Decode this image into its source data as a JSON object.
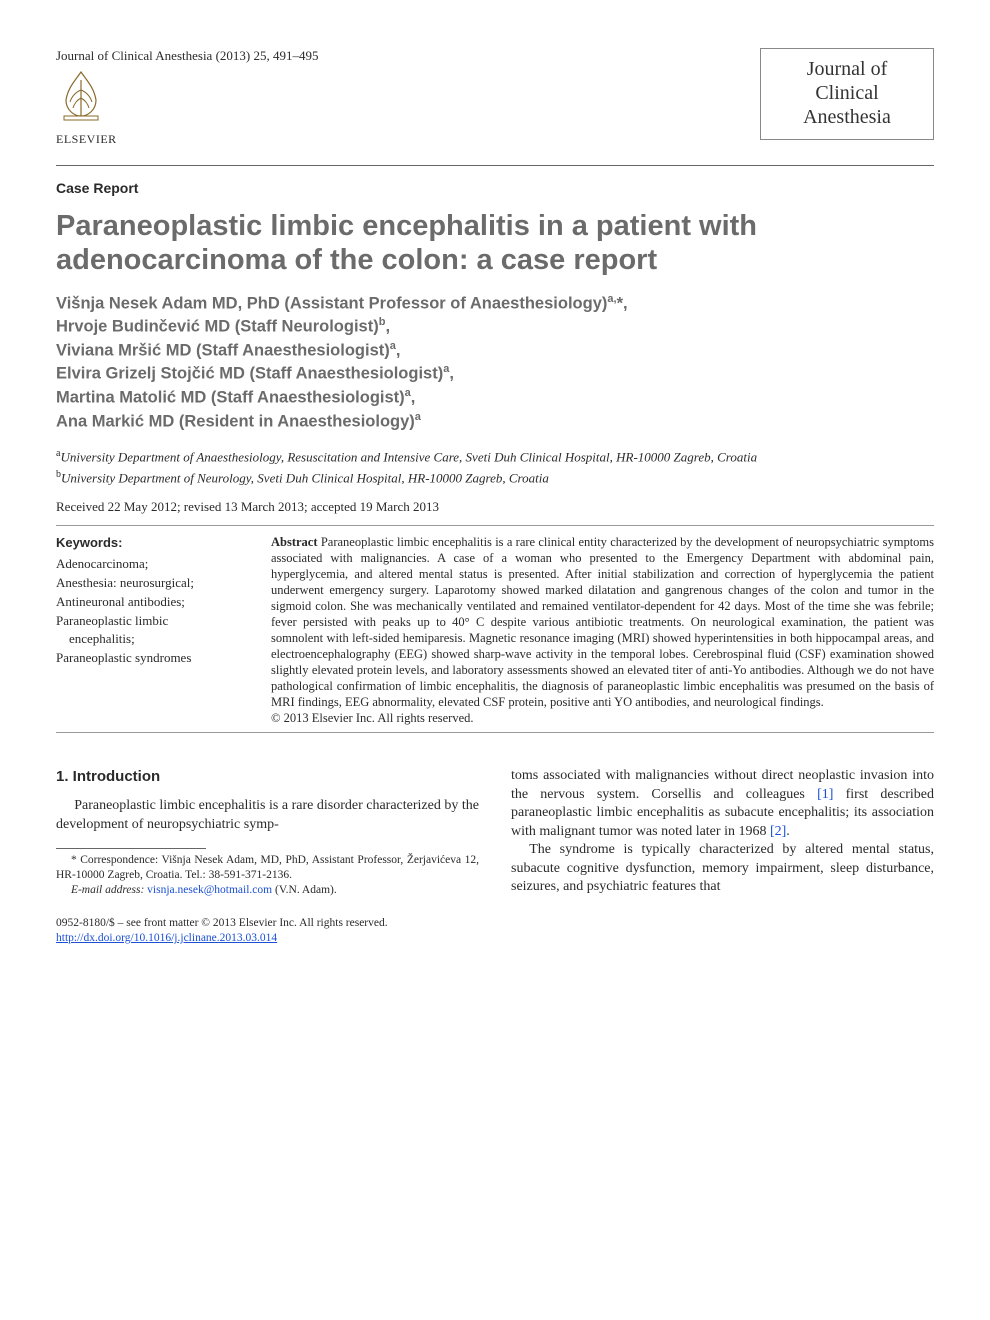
{
  "header": {
    "citation": "Journal of Clinical Anesthesia (2013) 25, 491–495",
    "publisher_name": "ELSEVIER",
    "journal_box_lines": [
      "Journal of",
      "Clinical",
      "Anesthesia"
    ]
  },
  "article": {
    "type_label": "Case Report",
    "title": "Paraneoplastic limbic encephalitis in a patient with adenocarcinoma of the colon: a case report",
    "authors_html_lines": [
      "Višnja Nesek Adam MD, PhD (Assistant Professor of Anaesthesiology)<sup>a,</sup>*,",
      "Hrvoje Budinčević MD (Staff Neurologist)<sup>b</sup>,",
      "Viviana Mršić MD (Staff Anaesthesiologist)<sup>a</sup>,",
      "Elvira Grizelj Stojčić MD (Staff Anaesthesiologist)<sup>a</sup>,",
      "Martina Matolić MD (Staff Anaesthesiologist)<sup>a</sup>,",
      "Ana Markić MD (Resident in Anaesthesiology)<sup>a</sup>"
    ],
    "affiliations": [
      "<sup>a</sup>University Department of Anaesthesiology, Resuscitation and Intensive Care, Sveti Duh Clinical Hospital, HR-10000 Zagreb, Croatia",
      "<sup>b</sup>University Department of Neurology, Sveti Duh Clinical Hospital, HR-10000 Zagreb, Croatia"
    ],
    "dates": "Received 22 May 2012; revised 13 March 2013; accepted 19 March 2013",
    "keywords_head": "Keywords:",
    "keywords": [
      "Adenocarcinoma;",
      "Anesthesia: neurosurgical;",
      "Antineuronal antibodies;",
      "Paraneoplastic limbic encephalitis;",
      "Paraneoplastic syndromes"
    ],
    "abstract_lead": "Abstract",
    "abstract_body": "Paraneoplastic limbic encephalitis is a rare clinical entity characterized by the development of neuropsychiatric symptoms associated with malignancies. A case of a woman who presented to the Emergency Department with abdominal pain, hyperglycemia, and altered mental status is presented. After initial stabilization and correction of hyperglycemia the patient underwent emergency surgery. Laparotomy showed marked dilatation and gangrenous changes of the colon and tumor in the sigmoid colon. She was mechanically ventilated and remained ventilator-dependent for 42 days. Most of the time she was febrile; fever persisted with peaks up to 40° C despite various antibiotic treatments. On neurological examination, the patient was somnolent with left-sided hemiparesis. Magnetic resonance imaging (MRI) showed hyperintensities in both hippocampal areas, and electroencephalography (EEG) showed sharp-wave activity in the temporal lobes. Cerebrospinal fluid (CSF) examination showed slightly elevated protein levels, and laboratory assessments showed an elevated titer of anti-Yo antibodies. Although we do not have pathological confirmation of limbic encephalitis, the diagnosis of paraneoplastic limbic encephalitis was presumed on the basis of MRI findings, EEG abnormality, elevated CSF protein, positive anti YO antibodies, and neurological findings.",
    "abstract_copyright": "© 2013 Elsevier Inc. All rights reserved."
  },
  "body": {
    "section_heading": "1. Introduction",
    "col1_para": "Paraneoplastic limbic encephalitis is a rare disorder characterized by the development of neuropsychiatric symp-",
    "col2_para1": "toms associated with malignancies without direct neoplastic invasion into the nervous system. Corsellis and colleagues [1] first described paraneoplastic limbic encephalitis as subacute encephalitis; its association with malignant tumor was noted later in 1968 [2].",
    "col2_para2": "The syndrome is typically characterized by altered mental status, subacute cognitive dysfunction, memory impairment, sleep disturbance, seizures, and psychiatric features that"
  },
  "footnotes": {
    "correspondence": "* Correspondence: Višnja Nesek Adam, MD, PhD, Assistant Professor, Žerjavićeva 12, HR-10000 Zagreb, Croatia. Tel.: 38-591-371-2136.",
    "email_label": "E-mail address:",
    "email": "visnja.nesek@hotmail.com",
    "email_paren": "(V.N. Adam)."
  },
  "bottom": {
    "line1": "0952-8180/$ – see front matter © 2013 Elsevier Inc. All rights reserved.",
    "doi": "http://dx.doi.org/10.1016/j.jclinane.2013.03.014"
  },
  "refs": {
    "r1": "[1]",
    "r2": "[2]"
  }
}
